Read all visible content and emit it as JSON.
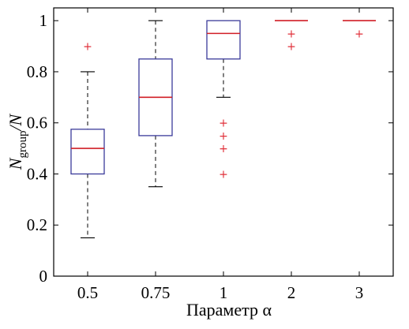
{
  "chart_data": {
    "type": "box",
    "title": "",
    "xlabel": "Параметр α",
    "ylabel": {
      "base": "N",
      "sub": "group",
      "suffix": "/N"
    },
    "ylim": [
      0,
      1.05
    ],
    "yticks": [
      0,
      0.2,
      0.4,
      0.6,
      0.8,
      1
    ],
    "ytick_labels": [
      "0",
      "0.2",
      "0.4",
      "0.6",
      "0.8",
      "1"
    ],
    "grid": false,
    "categories": [
      "0.5",
      "0.75",
      "1",
      "2",
      "3"
    ],
    "boxes": [
      {
        "category": "0.5",
        "whisker_low": 0.15,
        "q1": 0.4,
        "median": 0.5,
        "q3": 0.575,
        "whisker_high": 0.8,
        "outliers": [
          0.9
        ]
      },
      {
        "category": "0.75",
        "whisker_low": 0.35,
        "q1": 0.55,
        "median": 0.7,
        "q3": 0.85,
        "whisker_high": 1.0,
        "outliers": []
      },
      {
        "category": "1",
        "whisker_low": 0.7,
        "q1": 0.85,
        "median": 0.95,
        "q3": 1.0,
        "whisker_high": 1.0,
        "outliers": [
          0.6,
          0.55,
          0.5,
          0.4
        ]
      },
      {
        "category": "2",
        "whisker_low": 1.0,
        "q1": 1.0,
        "median": 1.0,
        "q3": 1.0,
        "whisker_high": 1.0,
        "outliers": [
          0.95,
          0.9
        ]
      },
      {
        "category": "3",
        "whisker_low": 1.0,
        "q1": 1.0,
        "median": 1.0,
        "q3": 1.0,
        "whisker_high": 1.0,
        "outliers": [
          0.95
        ]
      }
    ],
    "colors": {
      "box": "#3b3b9a",
      "median": "#d11f26",
      "outlier": "#e0303a",
      "whisker": "#000000"
    }
  }
}
